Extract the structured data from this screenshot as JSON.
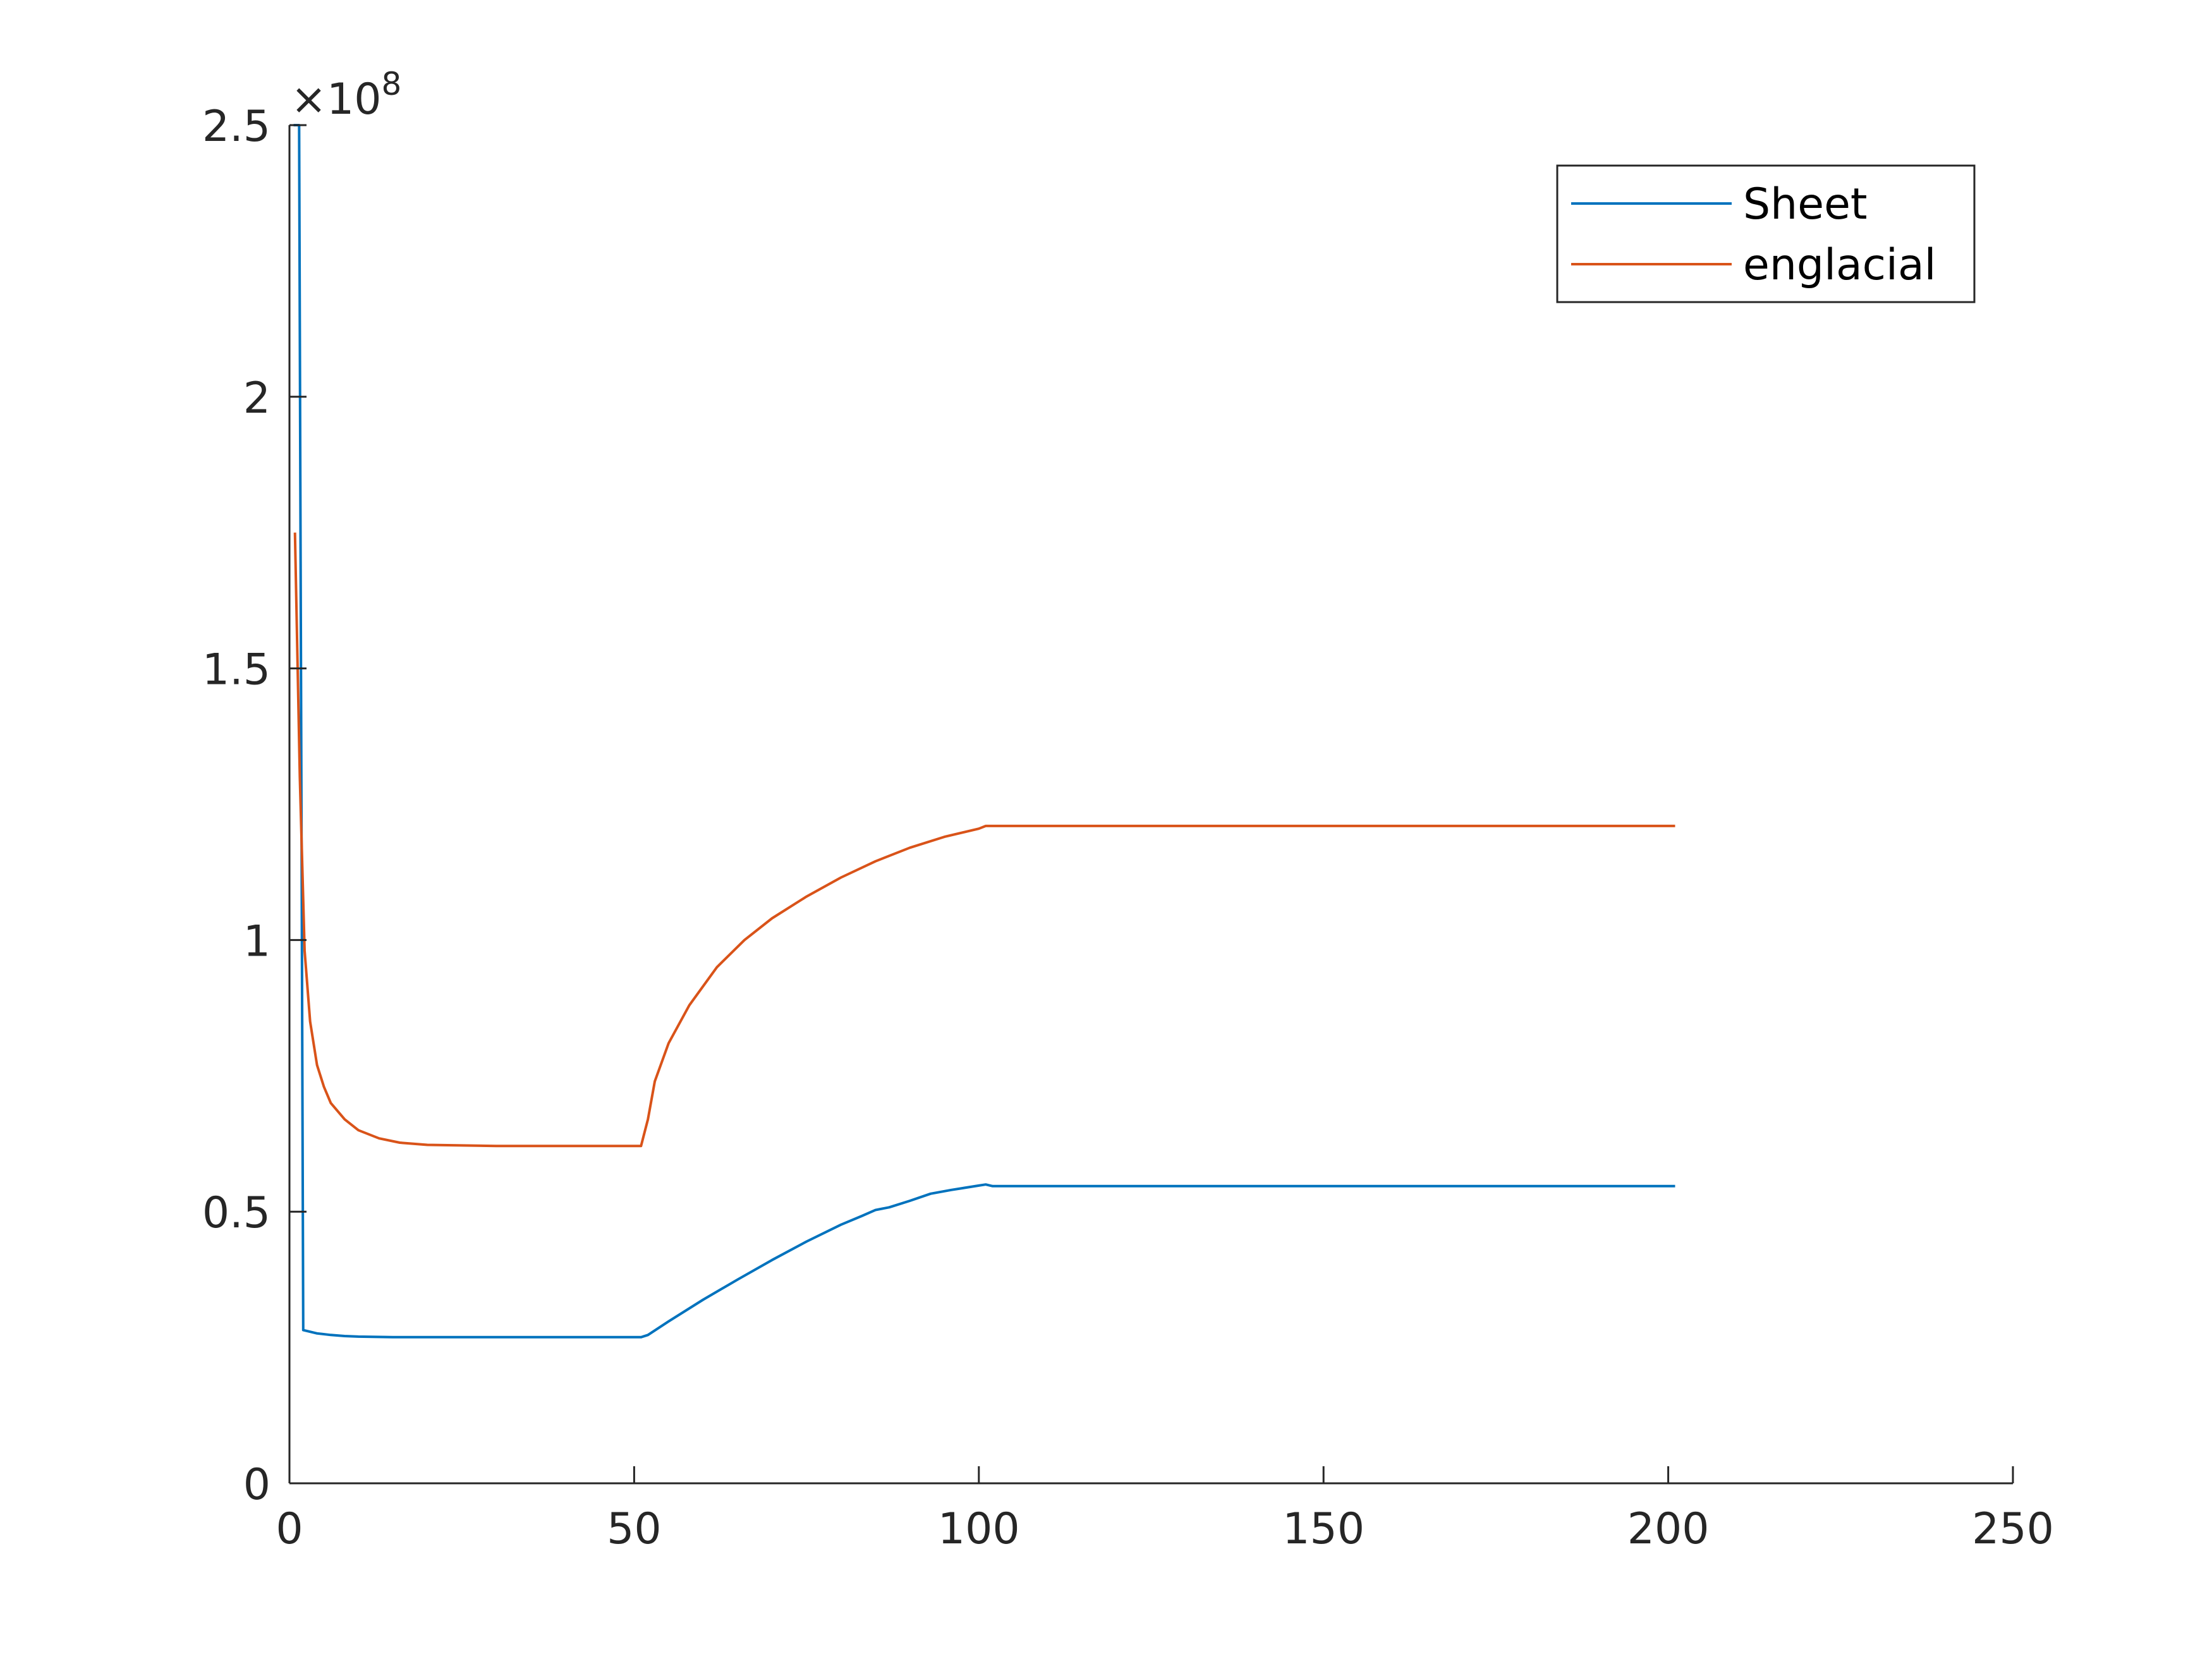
{
  "chart_data": {
    "type": "line",
    "title": "",
    "xlabel": "",
    "ylabel": "",
    "xlim": [
      0,
      250
    ],
    "ylim": [
      0,
      250000000
    ],
    "x_ticks": [
      0,
      50,
      100,
      150,
      200,
      250
    ],
    "x_tick_labels": [
      "0",
      "50",
      "100",
      "150",
      "200",
      "250"
    ],
    "y_ticks": [
      0,
      50000000,
      100000000,
      150000000,
      200000000,
      250000000
    ],
    "y_tick_labels": [
      "0",
      "0.5",
      "1",
      "1.5",
      "2",
      "2.5"
    ],
    "y_exponent": {
      "base": "×10",
      "power": "8"
    },
    "grid": false,
    "legend_position": "top-right",
    "series": [
      {
        "name": "Sheet",
        "color": "#0072BD",
        "points": [
          [
            0.6,
            250000000
          ],
          [
            1.4,
            250000000
          ],
          [
            2.0,
            28200000
          ],
          [
            4,
            27600000
          ],
          [
            6,
            27300000
          ],
          [
            8,
            27100000
          ],
          [
            10,
            27000000
          ],
          [
            15,
            26900000
          ],
          [
            20,
            26900000
          ],
          [
            30,
            26900000
          ],
          [
            40,
            26900000
          ],
          [
            50,
            26900000
          ],
          [
            51,
            26900000
          ],
          [
            52,
            27300000
          ],
          [
            55,
            29800000
          ],
          [
            60,
            33800000
          ],
          [
            65,
            37500000
          ],
          [
            70,
            41100000
          ],
          [
            75,
            44500000
          ],
          [
            80,
            47600000
          ],
          [
            83,
            49200000
          ],
          [
            85,
            50300000
          ],
          [
            87,
            50800000
          ],
          [
            90,
            52000000
          ],
          [
            93,
            53300000
          ],
          [
            96,
            54000000
          ],
          [
            100,
            54800000
          ],
          [
            101,
            55000000
          ],
          [
            102,
            54700000
          ],
          [
            110,
            54700000
          ],
          [
            130,
            54700000
          ],
          [
            150,
            54700000
          ],
          [
            170,
            54700000
          ],
          [
            190,
            54700000
          ],
          [
            201,
            54700000
          ]
        ]
      },
      {
        "name": "englacial",
        "color": "#D95319",
        "points": [
          [
            0.8,
            175000000
          ],
          [
            1.5,
            130000000
          ],
          [
            2.2,
            98000000
          ],
          [
            3,
            85000000
          ],
          [
            4,
            77000000
          ],
          [
            5,
            73000000
          ],
          [
            6,
            70000000
          ],
          [
            8,
            67000000
          ],
          [
            10,
            65000000
          ],
          [
            13,
            63500000
          ],
          [
            16,
            62700000
          ],
          [
            20,
            62300000
          ],
          [
            30,
            62100000
          ],
          [
            40,
            62100000
          ],
          [
            50,
            62100000
          ],
          [
            51,
            62100000
          ],
          [
            52,
            67000000
          ],
          [
            53,
            74000000
          ],
          [
            55,
            81000000
          ],
          [
            58,
            88000000
          ],
          [
            62,
            95000000
          ],
          [
            66,
            100000000
          ],
          [
            70,
            104000000
          ],
          [
            75,
            108000000
          ],
          [
            80,
            111500000
          ],
          [
            85,
            114500000
          ],
          [
            90,
            117000000
          ],
          [
            95,
            119000000
          ],
          [
            100,
            120500000
          ],
          [
            101,
            121000000
          ],
          [
            110,
            121000000
          ],
          [
            130,
            121000000
          ],
          [
            150,
            121000000
          ],
          [
            170,
            121000000
          ],
          [
            201,
            121000000
          ]
        ]
      }
    ]
  }
}
